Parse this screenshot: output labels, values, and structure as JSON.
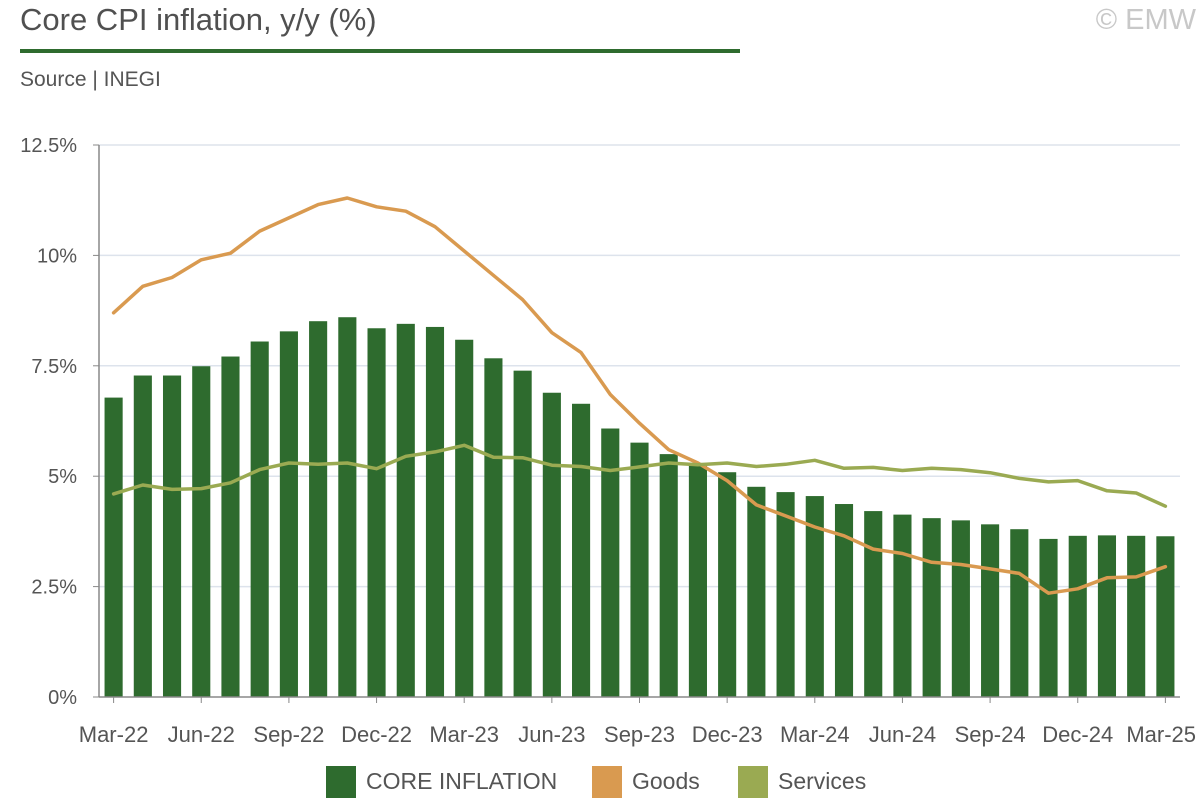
{
  "header": {
    "title": "Core CPI inflation, y/y (%)",
    "source": "Source | INEGI",
    "copyright": "© EMW"
  },
  "colors": {
    "core": "#2e6b2e",
    "goods": "#d99a50",
    "services": "#9aaa52",
    "grid": "#dde3ec",
    "axis": "#888888",
    "text": "#555555"
  },
  "chart_data": {
    "type": "bar",
    "title": "Core CPI inflation, y/y (%)",
    "xlabel": "",
    "ylabel": "",
    "ylim": [
      0,
      12.5
    ],
    "yticks": [
      0,
      2.5,
      5,
      7.5,
      10,
      12.5
    ],
    "ytick_labels": [
      "0%",
      "2.5%",
      "5%",
      "7.5%",
      "10%",
      "12.5%"
    ],
    "grid": true,
    "legend_position": "bottom",
    "categories": [
      "Mar-22",
      "Apr-22",
      "May-22",
      "Jun-22",
      "Jul-22",
      "Aug-22",
      "Sep-22",
      "Oct-22",
      "Nov-22",
      "Dec-22",
      "Jan-23",
      "Feb-23",
      "Mar-23",
      "Apr-23",
      "May-23",
      "Jun-23",
      "Jul-23",
      "Aug-23",
      "Sep-23",
      "Oct-23",
      "Nov-23",
      "Dec-23",
      "Jan-24",
      "Feb-24",
      "Mar-24",
      "Apr-24",
      "May-24",
      "Jun-24",
      "Jul-24",
      "Aug-24",
      "Sep-24",
      "Oct-24",
      "Nov-24",
      "Dec-24",
      "Jan-25",
      "Feb-25",
      "Mar-25"
    ],
    "xtick_labels": [
      "Mar-22",
      "Jun-22",
      "Sep-22",
      "Dec-22",
      "Mar-23",
      "Jun-23",
      "Sep-23",
      "Dec-23",
      "Mar-24",
      "Jun-24",
      "Sep-24",
      "Dec-24",
      "Mar-25"
    ],
    "series": [
      {
        "name": "CORE INFLATION",
        "type": "bar",
        "values": [
          6.78,
          7.28,
          7.28,
          7.49,
          7.71,
          8.05,
          8.28,
          8.51,
          8.6,
          8.35,
          8.45,
          8.38,
          8.09,
          7.67,
          7.39,
          6.89,
          6.64,
          6.08,
          5.76,
          5.5,
          5.3,
          5.09,
          4.76,
          4.64,
          4.55,
          4.37,
          4.21,
          4.13,
          4.05,
          4.0,
          3.91,
          3.8,
          3.58,
          3.65,
          3.66,
          3.65,
          3.64
        ]
      },
      {
        "name": "Goods",
        "type": "line",
        "values": [
          8.7,
          9.3,
          9.5,
          9.9,
          10.05,
          10.55,
          10.85,
          11.15,
          11.3,
          11.1,
          11.0,
          10.65,
          10.1,
          9.55,
          9.0,
          8.25,
          7.8,
          6.85,
          6.2,
          5.6,
          5.3,
          4.9,
          4.35,
          4.1,
          3.85,
          3.65,
          3.35,
          3.25,
          3.05,
          3.0,
          2.9,
          2.8,
          2.35,
          2.45,
          2.7,
          2.72,
          2.95
        ]
      },
      {
        "name": "Services",
        "type": "line",
        "values": [
          4.6,
          4.8,
          4.7,
          4.72,
          4.85,
          5.15,
          5.3,
          5.27,
          5.3,
          5.17,
          5.45,
          5.55,
          5.7,
          5.43,
          5.42,
          5.25,
          5.22,
          5.13,
          5.21,
          5.3,
          5.26,
          5.3,
          5.22,
          5.27,
          5.36,
          5.18,
          5.2,
          5.13,
          5.18,
          5.15,
          5.08,
          4.95,
          4.87,
          4.9,
          4.67,
          4.62,
          4.32
        ]
      }
    ]
  }
}
